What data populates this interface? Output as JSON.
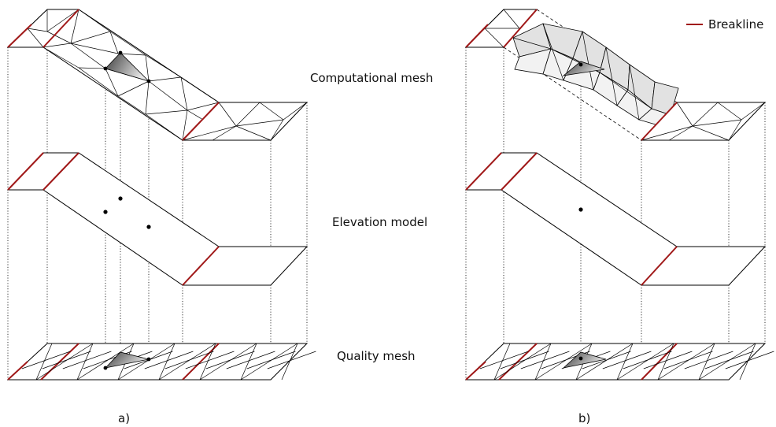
{
  "labels": {
    "computational_mesh": "Computational mesh",
    "elevation_model": "Elevation model",
    "quality_mesh": "Quality mesh",
    "panel_a": "a)",
    "panel_b": "b)"
  },
  "legend": {
    "breakline": "Breakline"
  },
  "colors": {
    "breakline": "#a01818",
    "highlight": "#555555",
    "fold_fill": "#e2e2e2",
    "mesh_edge": "#000000"
  }
}
